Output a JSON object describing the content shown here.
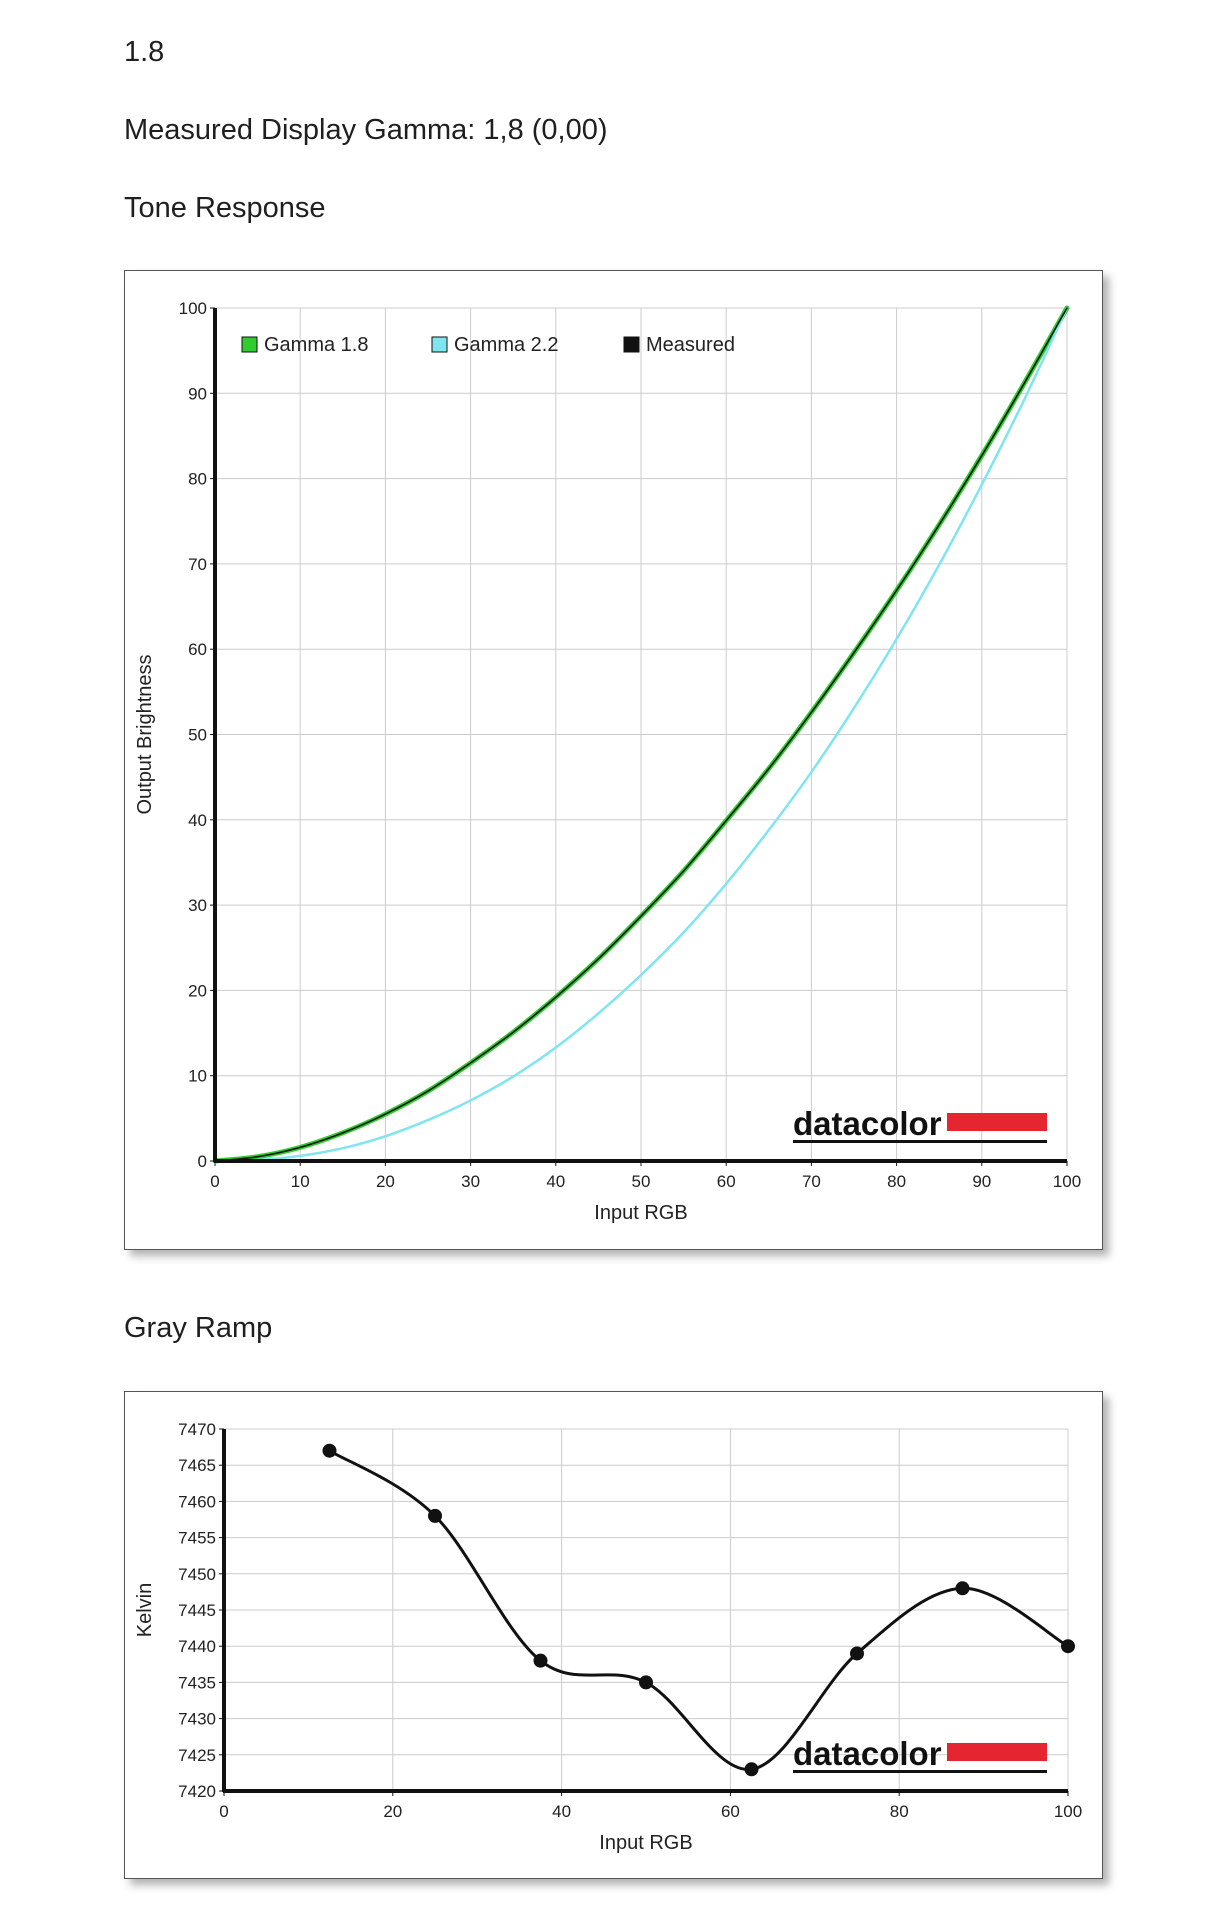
{
  "header": {
    "gamma_value": "1.8",
    "measured_label": "Measured Display Gamma: 1,8 (0,00)"
  },
  "sections": {
    "tone_title": "Tone Response",
    "gray_title": "Gray Ramp"
  },
  "brand": {
    "logo_text": "datacolor",
    "logo_color": "#e5252f"
  },
  "chart_data": [
    {
      "type": "line",
      "title": "Tone Response",
      "xlabel": "Input RGB",
      "ylabel": "Output Brightness",
      "xlim": [
        0,
        100
      ],
      "ylim": [
        0,
        100
      ],
      "xticks": [
        0,
        10,
        20,
        30,
        40,
        50,
        60,
        70,
        80,
        90,
        100
      ],
      "yticks": [
        0,
        10,
        20,
        30,
        40,
        50,
        60,
        70,
        80,
        90,
        100
      ],
      "grid": true,
      "legend_position": "top-left",
      "x": [
        0,
        5,
        10,
        15,
        20,
        25,
        30,
        35,
        40,
        45,
        50,
        55,
        60,
        65,
        70,
        75,
        80,
        85,
        90,
        95,
        100
      ],
      "series": [
        {
          "name": "Gamma 1.8",
          "color": "#2ecc2e",
          "values": [
            0,
            0.5,
            1.6,
            3.3,
            5.5,
            8.2,
            11.5,
            15.1,
            19.2,
            23.7,
            28.7,
            34.0,
            39.9,
            46.0,
            52.6,
            59.6,
            66.9,
            74.6,
            82.7,
            91.2,
            100
          ]
        },
        {
          "name": "Gamma 2.2",
          "color": "#7fe5ee",
          "values": [
            0,
            0.1,
            0.6,
            1.5,
            2.9,
            4.8,
            7.1,
            9.9,
            13.3,
            17.3,
            21.8,
            26.8,
            32.5,
            38.8,
            45.6,
            53.1,
            61.2,
            69.9,
            79.3,
            89.3,
            100
          ]
        },
        {
          "name": "Measured",
          "color": "#111111",
          "values": [
            0,
            0.5,
            1.6,
            3.3,
            5.5,
            8.2,
            11.5,
            15.1,
            19.2,
            23.7,
            28.7,
            34.0,
            39.9,
            46.0,
            52.6,
            59.6,
            66.9,
            74.6,
            82.7,
            91.2,
            100
          ]
        }
      ]
    },
    {
      "type": "line",
      "title": "Gray Ramp",
      "xlabel": "Input RGB",
      "ylabel": "Kelvin",
      "xlim": [
        0,
        100
      ],
      "ylim": [
        7420,
        7470
      ],
      "xticks": [
        0,
        20,
        40,
        60,
        80,
        100
      ],
      "yticks": [
        7420,
        7425,
        7430,
        7435,
        7440,
        7445,
        7450,
        7455,
        7460,
        7465,
        7470
      ],
      "grid": true,
      "legend_position": "none",
      "series": [
        {
          "color": "#111111",
          "x": [
            12.5,
            25,
            37.5,
            50,
            62.5,
            75,
            87.5,
            100
          ],
          "values": [
            7467,
            7458,
            7438,
            7435,
            7423,
            7439,
            7448,
            7440
          ]
        }
      ]
    }
  ]
}
